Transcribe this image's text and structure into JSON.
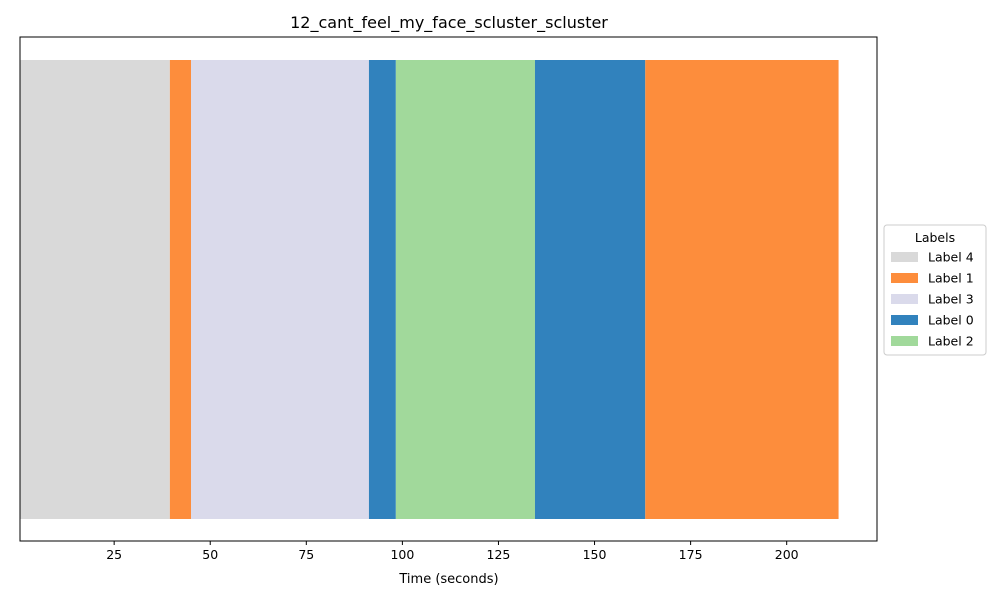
{
  "chart_data": {
    "type": "timeline",
    "title": "12_cant_feel_my_face_scluster_scluster",
    "xlabel": "Time (seconds)",
    "ylabel": "",
    "xlim": [
      0.5,
      223.5
    ],
    "xticks": [
      25,
      50,
      75,
      100,
      125,
      150,
      175,
      200
    ],
    "grid": false,
    "legend": {
      "title": "Labels",
      "placement": "center-right-outside",
      "entries": [
        {
          "name": "Label 4",
          "color": "#d9d9d9"
        },
        {
          "name": "Label 1",
          "color": "#fd8d3c"
        },
        {
          "name": "Label 3",
          "color": "#dadaeb"
        },
        {
          "name": "Label 0",
          "color": "#3182bd"
        },
        {
          "name": "Label 2",
          "color": "#a1d99b"
        }
      ]
    },
    "segments": [
      {
        "label": "Label 4",
        "start": 0.5,
        "end": 39.5
      },
      {
        "label": "Label 1",
        "start": 39.5,
        "end": 45.0
      },
      {
        "label": "Label 3",
        "start": 45.0,
        "end": 91.3
      },
      {
        "label": "Label 0",
        "start": 91.3,
        "end": 98.3
      },
      {
        "label": "Label 2",
        "start": 98.3,
        "end": 134.5
      },
      {
        "label": "Label 0",
        "start": 134.5,
        "end": 163.2
      },
      {
        "label": "Label 1",
        "start": 163.2,
        "end": 213.5
      }
    ]
  }
}
